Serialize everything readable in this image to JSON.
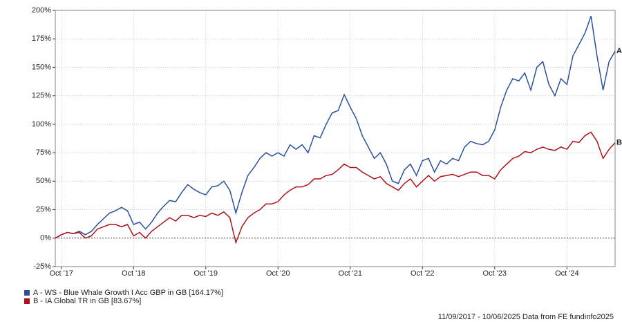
{
  "chart_data": {
    "type": "line",
    "x": [
      "2017-09",
      "2017-10",
      "2017-11",
      "2017-12",
      "2018-01",
      "2018-02",
      "2018-03",
      "2018-04",
      "2018-05",
      "2018-06",
      "2018-07",
      "2018-08",
      "2018-09",
      "2018-10",
      "2018-11",
      "2018-12",
      "2019-01",
      "2019-02",
      "2019-03",
      "2019-04",
      "2019-05",
      "2019-06",
      "2019-07",
      "2019-08",
      "2019-09",
      "2019-10",
      "2019-11",
      "2019-12",
      "2020-01",
      "2020-02",
      "2020-03",
      "2020-04",
      "2020-05",
      "2020-06",
      "2020-07",
      "2020-08",
      "2020-09",
      "2020-10",
      "2020-11",
      "2020-12",
      "2021-01",
      "2021-02",
      "2021-03",
      "2021-04",
      "2021-05",
      "2021-06",
      "2021-07",
      "2021-08",
      "2021-09",
      "2021-10",
      "2021-11",
      "2021-12",
      "2022-01",
      "2022-02",
      "2022-03",
      "2022-04",
      "2022-05",
      "2022-06",
      "2022-07",
      "2022-08",
      "2022-09",
      "2022-10",
      "2022-11",
      "2022-12",
      "2023-01",
      "2023-02",
      "2023-03",
      "2023-04",
      "2023-05",
      "2023-06",
      "2023-07",
      "2023-08",
      "2023-09",
      "2023-10",
      "2023-11",
      "2023-12",
      "2024-01",
      "2024-02",
      "2024-03",
      "2024-04",
      "2024-05",
      "2024-06",
      "2024-07",
      "2024-08",
      "2024-09",
      "2024-10",
      "2024-11",
      "2024-12",
      "2025-01",
      "2025-02",
      "2025-03",
      "2025-04",
      "2025-05",
      "2025-06"
    ],
    "series": [
      {
        "name": "A - WS - Blue Whale Growth I Acc GBP in GB [164.17%]",
        "end_label": "A",
        "color": "#2a4f9e",
        "values": [
          0,
          3,
          5,
          4,
          6,
          3,
          6,
          12,
          17,
          22,
          24,
          27,
          24,
          12,
          14,
          8,
          14,
          22,
          28,
          33,
          32,
          40,
          47,
          43,
          40,
          38,
          45,
          46,
          50,
          42,
          22,
          40,
          55,
          62,
          70,
          75,
          72,
          75,
          72,
          82,
          78,
          82,
          75,
          90,
          88,
          100,
          110,
          112,
          126,
          115,
          105,
          90,
          80,
          70,
          75,
          65,
          50,
          48,
          60,
          65,
          55,
          68,
          70,
          58,
          68,
          65,
          70,
          68,
          80,
          85,
          83,
          82,
          85,
          95,
          115,
          130,
          140,
          138,
          145,
          130,
          150,
          155,
          135,
          125,
          140,
          135,
          160,
          170,
          180,
          195,
          160,
          130,
          155,
          164.17
        ]
      },
      {
        "name": "B - IA Global TR in GB [83.67%]",
        "end_label": "B",
        "color": "#b01116",
        "values": [
          0,
          3,
          5,
          4,
          5,
          0,
          2,
          8,
          10,
          12,
          12,
          10,
          12,
          2,
          5,
          0,
          6,
          10,
          14,
          18,
          15,
          20,
          20,
          18,
          20,
          19,
          22,
          20,
          23,
          18,
          -4,
          10,
          18,
          22,
          25,
          30,
          30,
          32,
          38,
          42,
          45,
          45,
          47,
          52,
          52,
          55,
          56,
          60,
          65,
          62,
          62,
          58,
          55,
          52,
          54,
          48,
          45,
          42,
          48,
          52,
          45,
          50,
          55,
          50,
          54,
          55,
          56,
          54,
          56,
          58,
          58,
          55,
          55,
          52,
          60,
          65,
          70,
          72,
          76,
          75,
          78,
          80,
          78,
          77,
          80,
          78,
          85,
          84,
          90,
          93,
          85,
          70,
          78,
          83.67
        ]
      }
    ],
    "xlim": [
      "2017-09",
      "2025-06"
    ],
    "xticks": [
      {
        "value": "2017-10",
        "label": "Oct '17"
      },
      {
        "value": "2018-10",
        "label": "Oct '18"
      },
      {
        "value": "2019-10",
        "label": "Oct '19"
      },
      {
        "value": "2020-10",
        "label": "Oct '20"
      },
      {
        "value": "2021-10",
        "label": "Oct '21"
      },
      {
        "value": "2022-10",
        "label": "Oct '22"
      },
      {
        "value": "2023-10",
        "label": "Oct '23"
      },
      {
        "value": "2024-10",
        "label": "Oct '24"
      }
    ],
    "ylim": [
      -25,
      200
    ],
    "yticks": [
      {
        "value": -25,
        "label": "-25%"
      },
      {
        "value": 0,
        "label": "0%"
      },
      {
        "value": 25,
        "label": "25%"
      },
      {
        "value": 50,
        "label": "50%"
      },
      {
        "value": 75,
        "label": "75%"
      },
      {
        "value": 100,
        "label": "100%"
      },
      {
        "value": 125,
        "label": "125%"
      },
      {
        "value": 150,
        "label": "150%"
      },
      {
        "value": 175,
        "label": "175%"
      },
      {
        "value": 200,
        "label": "200%"
      }
    ],
    "grid": true,
    "footer": "11/09/2017 - 10/06/2025 Data from FE fundinfo2025"
  }
}
